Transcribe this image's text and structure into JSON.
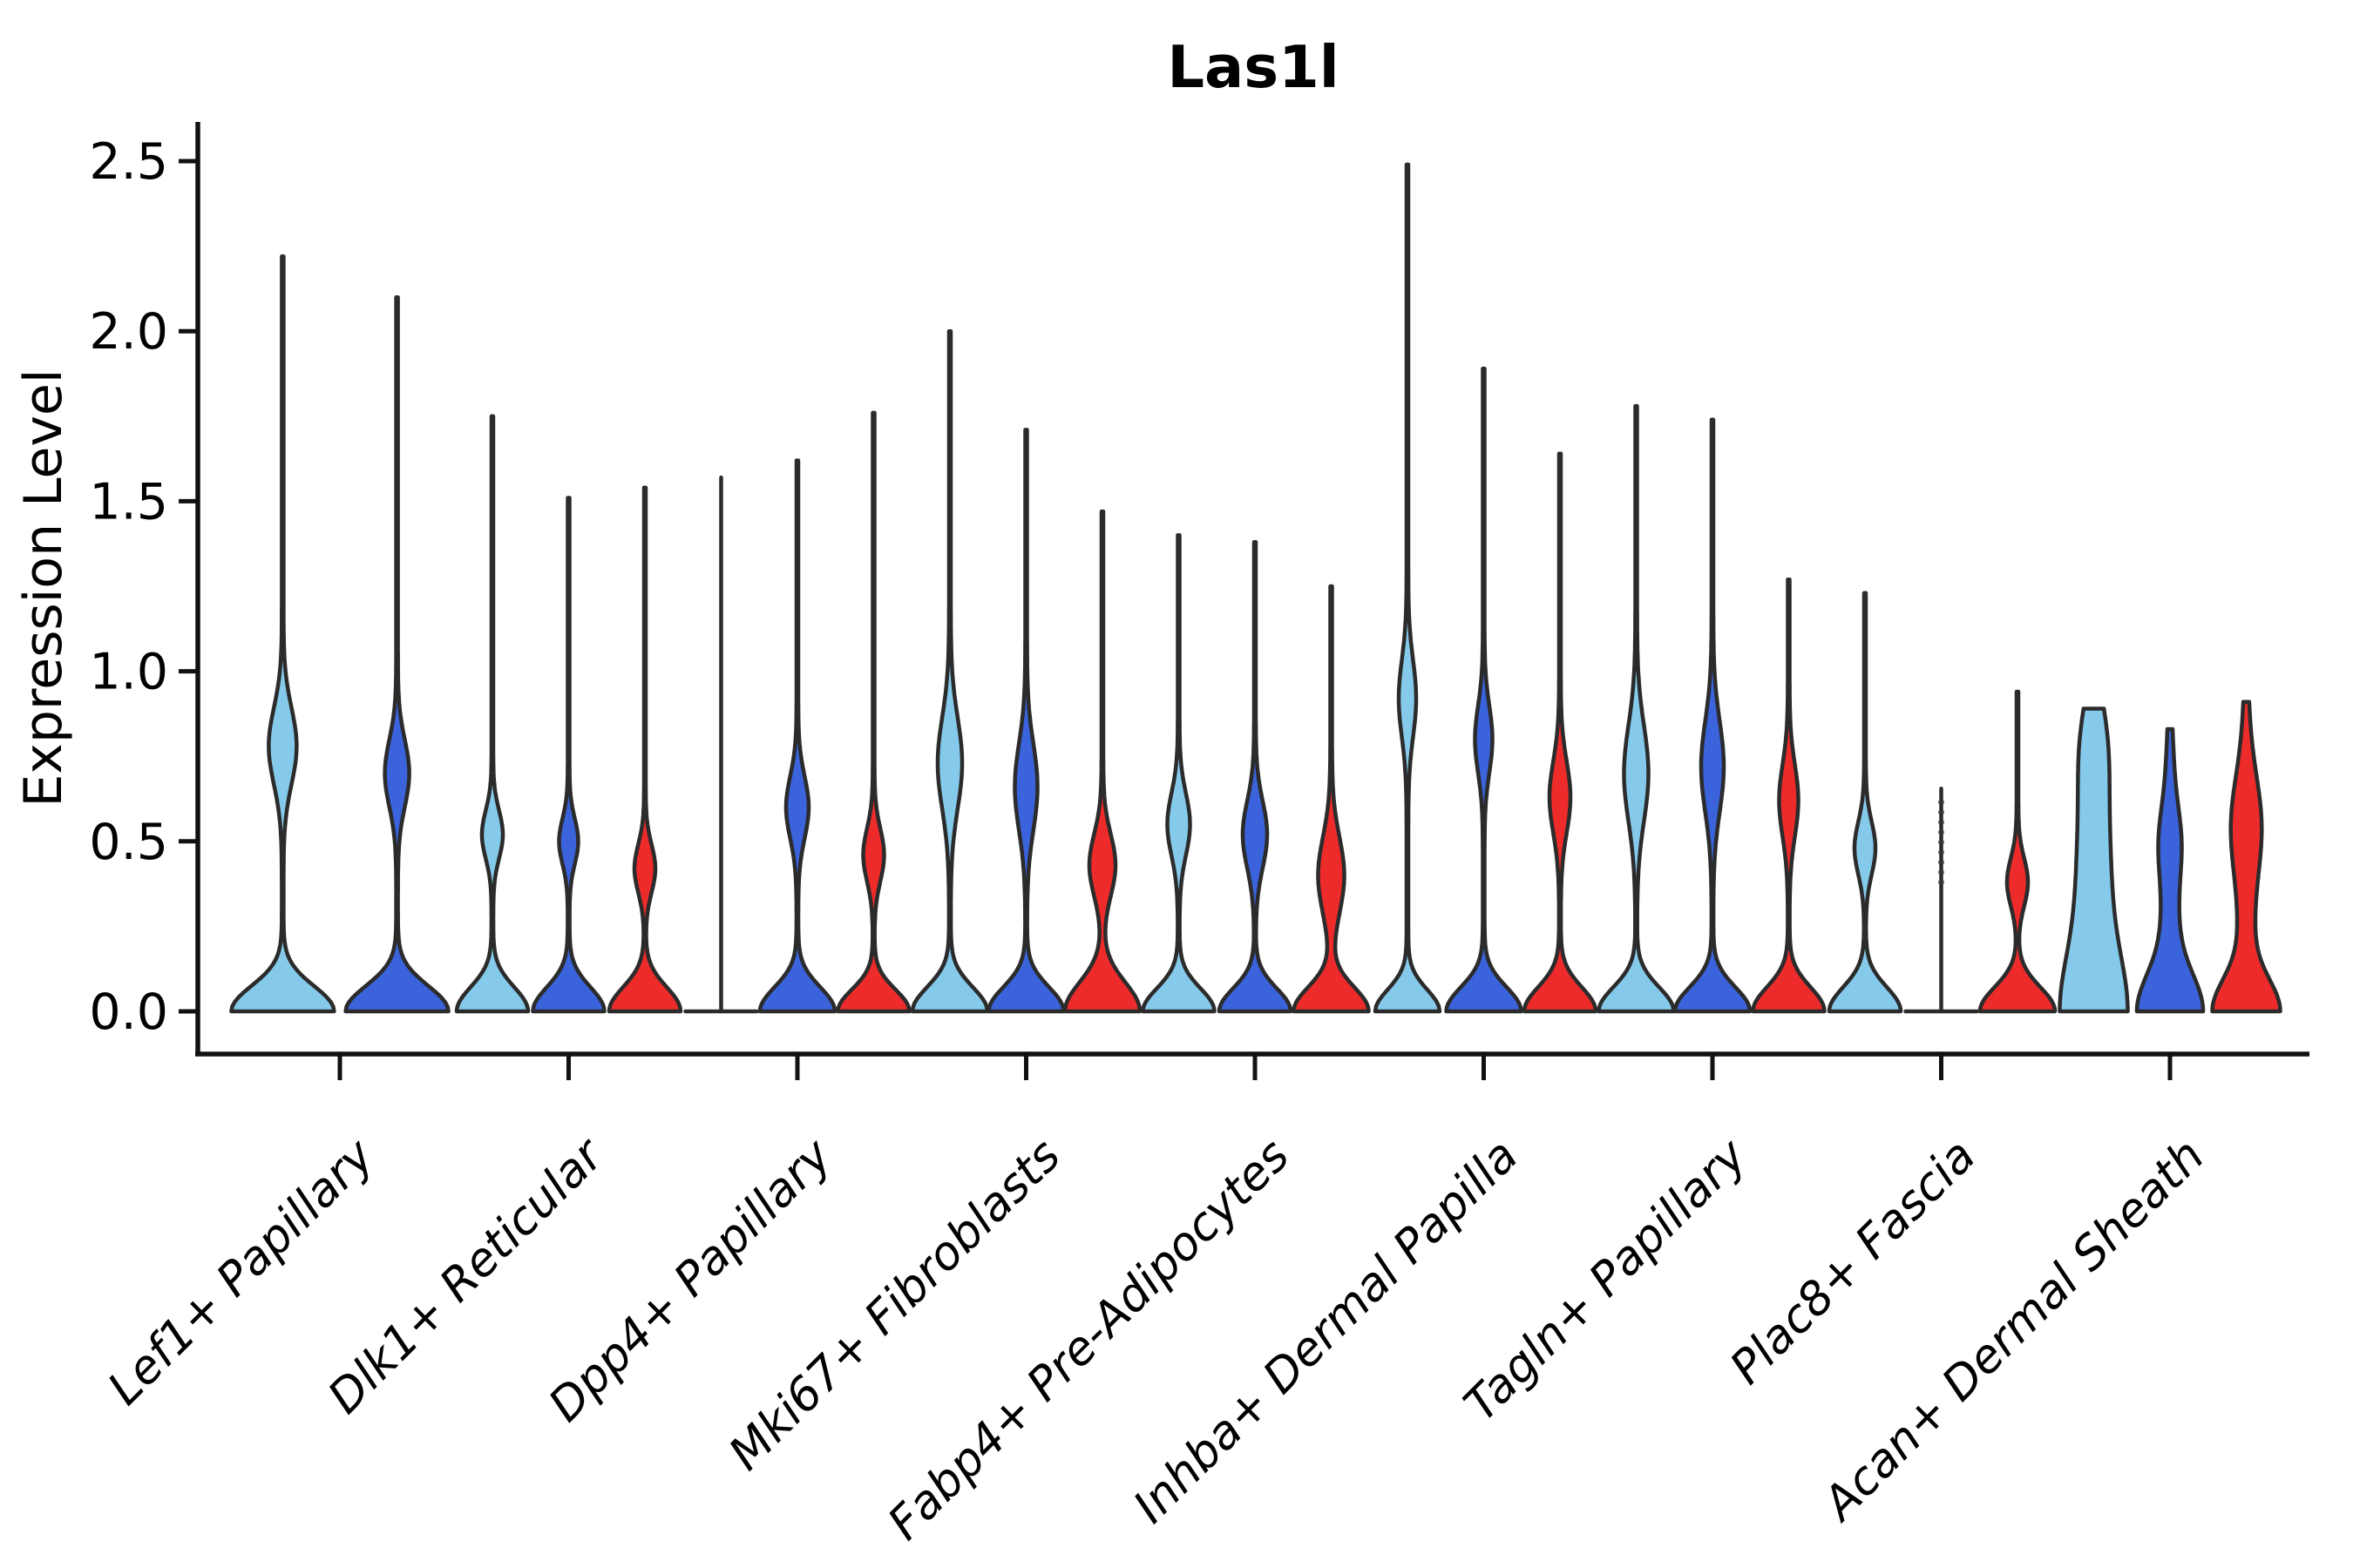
{
  "chart_data": {
    "type": "violin",
    "title": "Las1l",
    "ylabel": "Expression Level",
    "xlabel": "",
    "grid": false,
    "legend": "none",
    "yticks": [
      0.0,
      0.5,
      1.0,
      1.5,
      2.0,
      2.5
    ],
    "ylim": [
      -0.125,
      2.615
    ],
    "outline_color": "#2b2b2b",
    "spine_color": "#111111",
    "splits": [
      {
        "key": "split-1",
        "color": "#85CAEA"
      },
      {
        "key": "split-2",
        "color": "#3A63DC"
      },
      {
        "key": "split-3",
        "color": "#EE2B2B"
      }
    ],
    "categories": [
      "Lef1+ Papillary",
      "Dlk1+ Reticular",
      "Dpp4+ Papillary",
      "Mki67+ Fibroblasts",
      "Fabp4+ Pre-Adipocytes",
      "Inhba+ Dermal Papilla",
      "Tagln+ Papillary",
      "Plac8+ Fascia",
      "Acan+ Dermal Sheath"
    ],
    "violins": [
      {
        "category": 0,
        "split": 0,
        "shape": "violin",
        "max": 2.22,
        "base": [
          58,
          0.105
        ],
        "bulge": [
          0.78,
          0.16,
          15
        ]
      },
      {
        "category": 0,
        "split": 1,
        "shape": "violin",
        "max": 2.1,
        "base": [
          58,
          0.105
        ],
        "bulge": [
          0.7,
          0.14,
          13
        ]
      },
      {
        "category": 1,
        "split": 0,
        "shape": "violin",
        "max": 1.75,
        "base": [
          40,
          0.1
        ],
        "bulge": [
          0.52,
          0.1,
          11
        ]
      },
      {
        "category": 1,
        "split": 1,
        "shape": "violin",
        "max": 1.51,
        "base": [
          40,
          0.1
        ],
        "bulge": [
          0.5,
          0.095,
          10
        ]
      },
      {
        "category": 1,
        "split": 2,
        "shape": "violin",
        "max": 1.54,
        "base": [
          40,
          0.1
        ],
        "bulge": [
          0.42,
          0.1,
          11
        ]
      },
      {
        "category": 2,
        "split": 0,
        "shape": "line",
        "max": 1.57,
        "flat_halfwidth": 41
      },
      {
        "category": 2,
        "split": 1,
        "shape": "violin",
        "max": 1.62,
        "base": [
          42,
          0.1
        ],
        "bulge": [
          0.6,
          0.13,
          12
        ]
      },
      {
        "category": 2,
        "split": 2,
        "shape": "violin",
        "max": 1.76,
        "base": [
          40,
          0.09
        ],
        "bulge": [
          0.46,
          0.11,
          11
        ]
      },
      {
        "category": 3,
        "split": 0,
        "shape": "violin",
        "max": 2.0,
        "base": [
          42,
          0.1
        ],
        "bulge": [
          0.73,
          0.19,
          13
        ]
      },
      {
        "category": 3,
        "split": 1,
        "shape": "violin",
        "max": 1.71,
        "base": [
          42,
          0.1
        ],
        "bulge": [
          0.66,
          0.18,
          12
        ]
      },
      {
        "category": 3,
        "split": 2,
        "shape": "violin",
        "max": 1.47,
        "base": [
          42,
          0.12
        ],
        "bulge": [
          0.43,
          0.13,
          14
        ]
      },
      {
        "category": 4,
        "split": 0,
        "shape": "violin",
        "max": 1.4,
        "base": [
          40,
          0.095
        ],
        "bulge": [
          0.55,
          0.13,
          12
        ]
      },
      {
        "category": 4,
        "split": 1,
        "shape": "violin",
        "max": 1.38,
        "base": [
          40,
          0.095
        ],
        "bulge": [
          0.52,
          0.14,
          13
        ]
      },
      {
        "category": 4,
        "split": 2,
        "shape": "violin",
        "max": 1.25,
        "base": [
          42,
          0.1
        ],
        "bulge": [
          0.4,
          0.16,
          14
        ]
      },
      {
        "category": 5,
        "split": 0,
        "shape": "violin",
        "max": 2.49,
        "base": [
          36,
          0.09
        ],
        "bulge": [
          0.92,
          0.16,
          9
        ]
      },
      {
        "category": 5,
        "split": 1,
        "shape": "violin",
        "max": 1.89,
        "base": [
          42,
          0.1
        ],
        "bulge": [
          0.8,
          0.14,
          9
        ]
      },
      {
        "category": 5,
        "split": 2,
        "shape": "violin",
        "max": 1.64,
        "base": [
          40,
          0.1
        ],
        "bulge": [
          0.63,
          0.15,
          11
        ]
      },
      {
        "category": 6,
        "split": 0,
        "shape": "violin",
        "max": 1.78,
        "base": [
          42,
          0.1
        ],
        "bulge": [
          0.7,
          0.2,
          13
        ]
      },
      {
        "category": 6,
        "split": 1,
        "shape": "violin",
        "max": 1.74,
        "base": [
          42,
          0.1
        ],
        "bulge": [
          0.72,
          0.19,
          12
        ]
      },
      {
        "category": 6,
        "split": 2,
        "shape": "violin",
        "max": 1.27,
        "base": [
          40,
          0.1
        ],
        "bulge": [
          0.62,
          0.15,
          10
        ]
      },
      {
        "category": 7,
        "split": 0,
        "shape": "violin",
        "max": 1.23,
        "base": [
          40,
          0.1
        ],
        "bulge": [
          0.48,
          0.11,
          11
        ]
      },
      {
        "category": 7,
        "split": 1,
        "shape": "line",
        "max": 0.655,
        "flat_halfwidth": 41,
        "dots": [
          0.375,
          0.63
        ]
      },
      {
        "category": 7,
        "split": 2,
        "shape": "violin",
        "max": 0.94,
        "base": [
          42,
          0.1
        ],
        "bulge": [
          0.38,
          0.1,
          11
        ]
      },
      {
        "category": 8,
        "split": 0,
        "shape": "violin",
        "max": 0.89,
        "base": [
          18,
          0.22
        ],
        "col": [
          20,
          0.85
        ],
        "bulge": [
          0.8,
          0.18,
          6
        ]
      },
      {
        "category": 8,
        "split": 1,
        "shape": "violin",
        "max": 0.83,
        "base": [
          28,
          0.15
        ],
        "col": [
          9,
          0.75
        ],
        "bulge": [
          0.5,
          0.13,
          5
        ]
      },
      {
        "category": 8,
        "split": 2,
        "shape": "violin",
        "max": 0.91,
        "base": [
          30,
          0.13
        ],
        "col": [
          8,
          0.85
        ],
        "bulge": [
          0.55,
          0.19,
          10
        ]
      }
    ]
  }
}
